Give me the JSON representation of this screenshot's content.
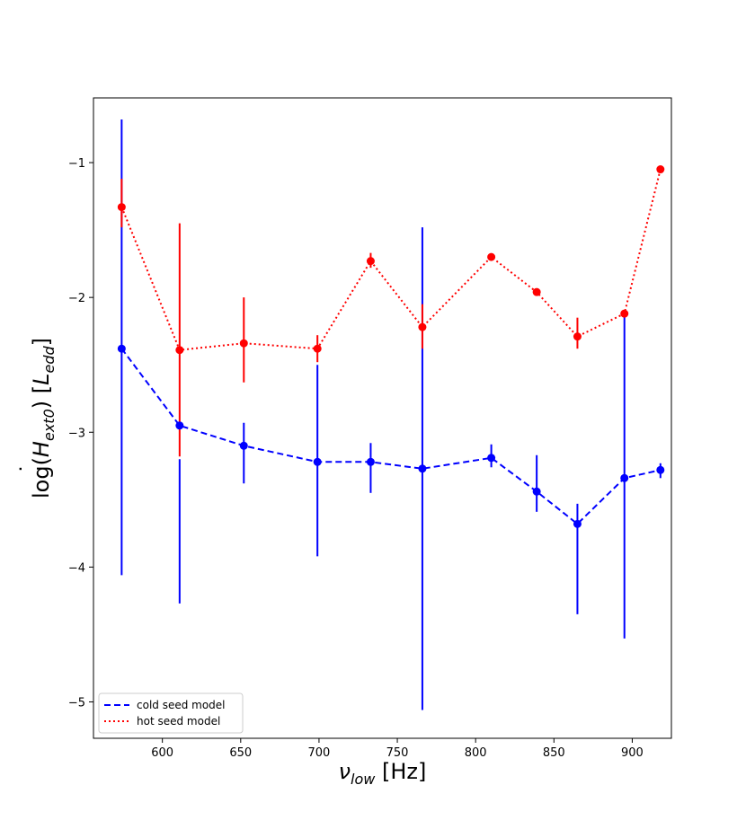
{
  "chart_data": {
    "type": "line",
    "title": "",
    "xlabel": {
      "main": "ν",
      "sub": "low",
      "unit": " [Hz]"
    },
    "ylabel": {
      "prefix": "log(",
      "main": "H",
      "sub": "ext0",
      "mid": ") [",
      "unit_main": "L",
      "unit_sub": "edd",
      "suffix": "]"
    },
    "xlim": [
      556,
      925
    ],
    "ylim": [
      -5.27,
      -0.52
    ],
    "xticks": [
      600,
      650,
      700,
      750,
      800,
      850,
      900
    ],
    "xtick_labels": [
      "600",
      "650",
      "700",
      "750",
      "800",
      "850",
      "900"
    ],
    "yticks": [
      -5,
      -4,
      -3,
      -2,
      -1
    ],
    "ytick_labels": [
      "−5",
      "−4",
      "−3",
      "−2",
      "−1"
    ],
    "legend_position": "lower-left",
    "series": [
      {
        "name": "cold seed model",
        "color": "#0000ff",
        "linestyle": "dashed",
        "x": [
          574,
          611,
          652,
          699,
          733,
          766,
          810,
          839,
          865,
          895,
          918
        ],
        "y": [
          -2.38,
          -2.95,
          -3.1,
          -3.22,
          -3.22,
          -3.27,
          -3.19,
          -3.44,
          -3.68,
          -3.34,
          -3.28
        ],
        "yerr_low": [
          -4.06,
          -4.27,
          -3.38,
          -3.92,
          -3.45,
          -5.06,
          -3.26,
          -3.59,
          -4.35,
          -4.53,
          -3.34
        ],
        "yerr_high": [
          -0.68,
          -3.2,
          -2.93,
          -2.5,
          -3.08,
          -1.48,
          -3.09,
          -3.17,
          -3.53,
          -2.12,
          -3.23
        ]
      },
      {
        "name": "hot seed model",
        "color": "#ff0000",
        "linestyle": "dotted",
        "x": [
          574,
          611,
          652,
          699,
          733,
          766,
          810,
          839,
          865,
          895,
          918
        ],
        "y": [
          -1.33,
          -2.39,
          -2.34,
          -2.38,
          -1.73,
          -2.22,
          -1.7,
          -1.96,
          -2.29,
          -2.12,
          -1.05
        ],
        "yerr_low": [
          -1.48,
          -3.18,
          -2.63,
          -2.48,
          -1.78,
          -2.38,
          -1.7,
          -1.97,
          -2.38,
          -2.12,
          -1.05
        ],
        "yerr_high": [
          -1.12,
          -1.45,
          -2.0,
          -2.28,
          -1.67,
          -2.05,
          -1.7,
          -1.95,
          -2.15,
          -2.12,
          -1.05
        ]
      }
    ]
  }
}
